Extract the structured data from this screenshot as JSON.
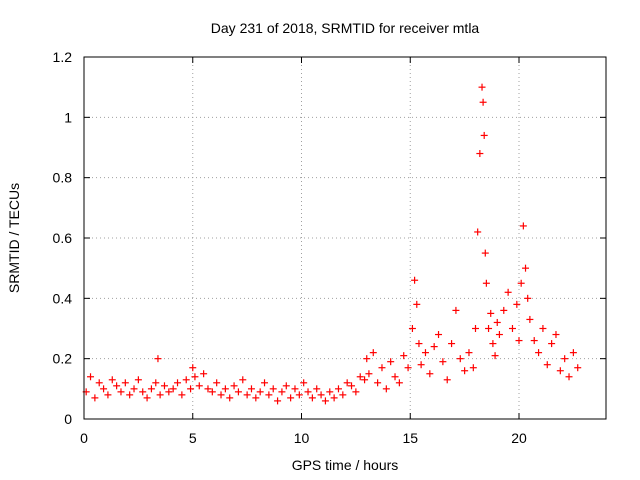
{
  "chart_data": {
    "type": "scatter",
    "title": "Day 231 of 2018, SRMTID for receiver mtla",
    "xlabel": "GPS time / hours",
    "ylabel": "SRMTID / TECUs",
    "xlim": [
      0,
      24
    ],
    "ylim": [
      0,
      1.2
    ],
    "grid": true,
    "marker": "+",
    "color": "#ff0000",
    "xticks": [
      0,
      5,
      10,
      15,
      20
    ],
    "xtick_labels": [
      "0",
      "5",
      "10",
      "15",
      "20"
    ],
    "yticks": [
      0,
      0.2,
      0.4,
      0.6,
      0.8,
      1,
      1.2
    ],
    "ytick_labels": [
      "0",
      "0.2",
      "0.4",
      "0.6",
      "0.8",
      "1",
      "1.2"
    ],
    "series": [
      {
        "name": "SRMTID",
        "x": [
          0.1,
          0.3,
          0.5,
          0.7,
          0.9,
          1.1,
          1.3,
          1.5,
          1.7,
          1.9,
          2.1,
          2.3,
          2.5,
          2.7,
          2.9,
          3.1,
          3.3,
          3.4,
          3.5,
          3.7,
          3.9,
          4.1,
          4.3,
          4.5,
          4.7,
          4.9,
          5.0,
          5.1,
          5.3,
          5.5,
          5.7,
          5.9,
          6.1,
          6.3,
          6.5,
          6.7,
          6.9,
          7.1,
          7.3,
          7.5,
          7.7,
          7.9,
          8.1,
          8.3,
          8.5,
          8.7,
          8.9,
          9.1,
          9.3,
          9.5,
          9.7,
          9.9,
          10.1,
          10.3,
          10.5,
          10.7,
          10.9,
          11.1,
          11.3,
          11.5,
          11.7,
          11.9,
          12.1,
          12.3,
          12.5,
          12.7,
          12.9,
          13.0,
          13.1,
          13.3,
          13.5,
          13.7,
          13.9,
          14.1,
          14.3,
          14.5,
          14.7,
          14.9,
          15.1,
          15.2,
          15.3,
          15.4,
          15.5,
          15.7,
          15.9,
          16.1,
          16.3,
          16.5,
          16.7,
          16.9,
          17.1,
          17.3,
          17.5,
          17.7,
          17.9,
          18.0,
          18.1,
          18.2,
          18.3,
          18.35,
          18.4,
          18.45,
          18.5,
          18.6,
          18.7,
          18.8,
          18.9,
          19.0,
          19.1,
          19.3,
          19.5,
          19.7,
          19.9,
          20.0,
          20.1,
          20.2,
          20.3,
          20.4,
          20.5,
          20.7,
          20.9,
          21.1,
          21.3,
          21.5,
          21.7,
          21.9,
          22.1,
          22.3,
          22.5,
          22.7
        ],
        "y": [
          0.09,
          0.14,
          0.07,
          0.12,
          0.1,
          0.08,
          0.13,
          0.11,
          0.09,
          0.12,
          0.08,
          0.1,
          0.13,
          0.09,
          0.07,
          0.1,
          0.12,
          0.2,
          0.08,
          0.11,
          0.09,
          0.1,
          0.12,
          0.08,
          0.13,
          0.1,
          0.17,
          0.14,
          0.11,
          0.15,
          0.1,
          0.09,
          0.12,
          0.08,
          0.1,
          0.07,
          0.11,
          0.09,
          0.13,
          0.08,
          0.1,
          0.07,
          0.09,
          0.12,
          0.08,
          0.1,
          0.06,
          0.09,
          0.11,
          0.07,
          0.1,
          0.08,
          0.12,
          0.09,
          0.07,
          0.1,
          0.08,
          0.06,
          0.09,
          0.07,
          0.1,
          0.08,
          0.12,
          0.11,
          0.09,
          0.14,
          0.13,
          0.2,
          0.15,
          0.22,
          0.12,
          0.17,
          0.1,
          0.19,
          0.14,
          0.12,
          0.21,
          0.17,
          0.3,
          0.46,
          0.38,
          0.25,
          0.18,
          0.22,
          0.15,
          0.24,
          0.28,
          0.19,
          0.13,
          0.25,
          0.36,
          0.2,
          0.16,
          0.22,
          0.17,
          0.3,
          0.62,
          0.88,
          1.1,
          1.05,
          0.94,
          0.55,
          0.45,
          0.3,
          0.35,
          0.25,
          0.21,
          0.32,
          0.28,
          0.36,
          0.42,
          0.3,
          0.38,
          0.26,
          0.45,
          0.64,
          0.5,
          0.4,
          0.33,
          0.26,
          0.22,
          0.3,
          0.18,
          0.25,
          0.28,
          0.16,
          0.2,
          0.14,
          0.22,
          0.17
        ]
      }
    ]
  }
}
